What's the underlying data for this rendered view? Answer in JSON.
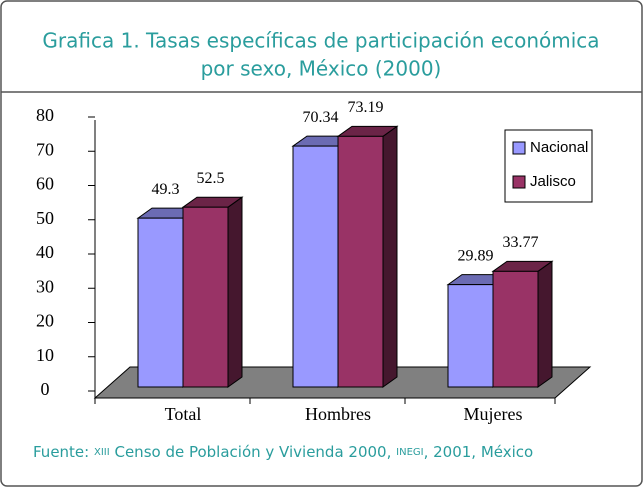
{
  "chart_data": {
    "type": "bar3d",
    "title": [
      "Grafica 1. Tasas específicas de participación económica",
      "por sexo, México (2000)"
    ],
    "categories": [
      "Total",
      "Hombres",
      "Mujeres"
    ],
    "series": [
      {
        "name": "Nacional",
        "color": "#9999ff",
        "values": [
          49.3,
          70.34,
          29.89
        ]
      },
      {
        "name": "Jalisco",
        "color": "#993366",
        "values": [
          52.5,
          73.19,
          33.77
        ]
      }
    ],
    "ylim": [
      0,
      80
    ],
    "yticks": [
      0,
      10,
      20,
      30,
      40,
      50,
      60,
      70,
      80
    ],
    "legend": "upper right",
    "footer": [
      "Fuente:",
      "XIII",
      "Censo de Población y Vivienda 2000,",
      "INEGI",
      ", 2001, México"
    ]
  }
}
